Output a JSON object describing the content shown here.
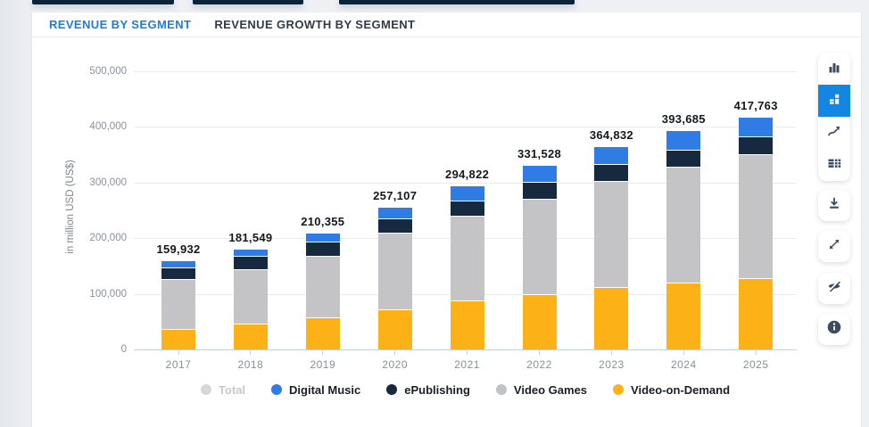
{
  "chrome": {
    "top_bar_color": "#0c2438"
  },
  "tabs": [
    {
      "label": "REVENUE BY SEGMENT",
      "active": true
    },
    {
      "label": "REVENUE GROWTH BY SEGMENT",
      "active": false
    }
  ],
  "toolbar": {
    "accent_color": "#1386e3",
    "icons": [
      {
        "name": "column-chart",
        "active": false
      },
      {
        "name": "stacked-chart",
        "active": true
      },
      {
        "name": "line-chart",
        "active": false
      },
      {
        "name": "data-table",
        "active": false
      },
      {
        "name": "download",
        "active": false
      },
      {
        "name": "fullscreen",
        "active": false
      },
      {
        "name": "hide-labels",
        "active": false
      },
      {
        "name": "info",
        "active": false
      }
    ]
  },
  "chart_data": {
    "type": "bar",
    "stacked": true,
    "ylabel": "in million USD (US$)",
    "categories": [
      "2017",
      "2018",
      "2019",
      "2020",
      "2021",
      "2022",
      "2023",
      "2024",
      "2025"
    ],
    "series": [
      {
        "name": "Video-on-Demand",
        "color": "#fcb216",
        "values": [
          37500,
          47000,
          58000,
          72000,
          88000,
          99000,
          112000,
          120000,
          128000
        ]
      },
      {
        "name": "Video Games",
        "color": "#c4c4c6",
        "values": [
          88932,
          96549,
          110355,
          138107,
          152822,
          172528,
          190832,
          208685,
          222763
        ]
      },
      {
        "name": "ePublishing",
        "color": "#16293f",
        "values": [
          21500,
          25000,
          26000,
          26000,
          27000,
          30000,
          30000,
          30000,
          33000
        ]
      },
      {
        "name": "Digital Music",
        "color": "#2e7ce4",
        "values": [
          12000,
          13000,
          16000,
          21000,
          27000,
          30000,
          32000,
          35000,
          34000
        ]
      }
    ],
    "totals": [
      "159,932",
      "181,549",
      "210,355",
      "257,107",
      "294,822",
      "331,528",
      "364,832",
      "393,685",
      "417,763"
    ],
    "ylim": [
      0,
      500000
    ],
    "yticks": [
      "0",
      "100,000",
      "200,000",
      "300,000",
      "400,000",
      "500,000"
    ],
    "grid": true,
    "legend_position": "bottom",
    "legend": [
      {
        "name": "Total",
        "color": "#d5d7da",
        "dim": true
      },
      {
        "name": "Digital Music",
        "color": "#2e7ce4",
        "dim": false
      },
      {
        "name": "ePublishing",
        "color": "#16293f",
        "dim": false
      },
      {
        "name": "Video Games",
        "color": "#c0c2c5",
        "dim": false
      },
      {
        "name": "Video-on-Demand",
        "color": "#fcb216",
        "dim": false
      }
    ]
  }
}
